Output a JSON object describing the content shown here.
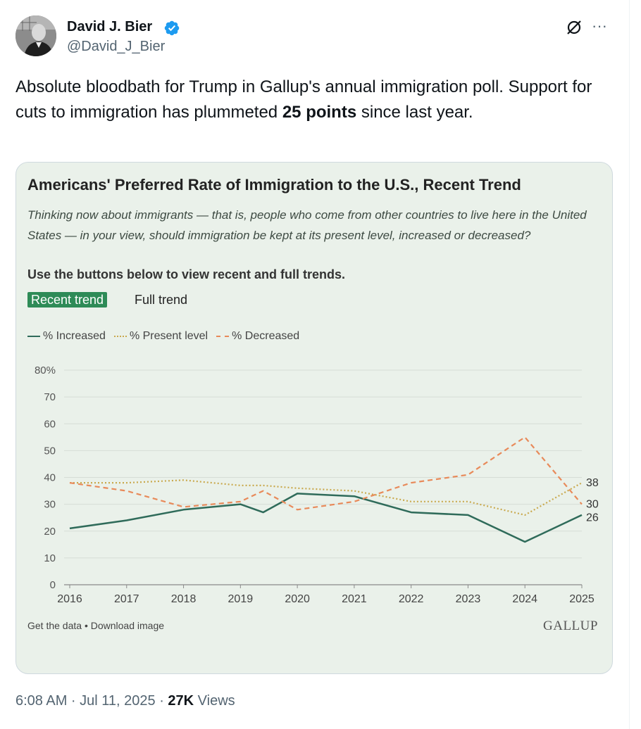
{
  "author": {
    "name": "David J. Bier",
    "handle": "@David_J_Bier",
    "verified": true
  },
  "tweet": {
    "text_part1": "Absolute bloodbath for Trump in Gallup's annual immigration poll. Support for cuts to immigration has plummeted ",
    "text_bold": "25 points",
    "text_part2": " since last year."
  },
  "card": {
    "title": "Americans' Preferred Rate of Immigration to the U.S., Recent Trend",
    "subtitle": "Thinking now about immigrants — that is, people who come from other countries to live here in the United States — in your view, should immigration be kept at its present level, increased or decreased?",
    "instructions": "Use the buttons below to view recent and full trends.",
    "btn_recent": "Recent trend",
    "btn_full": "Full trend",
    "footer_links": "Get the data • Download image",
    "brand": "GALLUP"
  },
  "chart_data": {
    "type": "line",
    "ylim": [
      0,
      80
    ],
    "yticks": [
      "0",
      "10",
      "20",
      "30",
      "40",
      "50",
      "60",
      "70",
      "80%"
    ],
    "xticks": [
      "2016",
      "2017",
      "2018",
      "2019",
      "2020",
      "2021",
      "2022",
      "2023",
      "2024",
      "2025"
    ],
    "legend_position": "top-left",
    "series": [
      {
        "name": "% Increased",
        "color": "#2f6b5a",
        "style": "solid",
        "x": [
          2016,
          2017,
          2018,
          2019,
          2019.4,
          2020,
          2021,
          2022,
          2023,
          2024,
          2025
        ],
        "y": [
          21,
          24,
          28,
          30,
          27,
          34,
          33,
          27,
          26,
          16,
          26
        ],
        "end_label": "26"
      },
      {
        "name": "% Present level",
        "color": "#c9a94e",
        "style": "dotted",
        "x": [
          2016,
          2017,
          2018,
          2019,
          2019.4,
          2020,
          2021,
          2022,
          2023,
          2024,
          2025
        ],
        "y": [
          38,
          38,
          39,
          37,
          37,
          36,
          35,
          31,
          31,
          26,
          38
        ],
        "end_label": "38"
      },
      {
        "name": "% Decreased",
        "color": "#e88a5a",
        "style": "dashed",
        "x": [
          2016,
          2017,
          2018,
          2019,
          2019.4,
          2020,
          2021,
          2022,
          2023,
          2024,
          2025
        ],
        "y": [
          38,
          35,
          29,
          31,
          35,
          28,
          31,
          38,
          41,
          55,
          30
        ],
        "end_label": "30"
      }
    ]
  },
  "meta": {
    "time": "6:08 AM · Jul 11, 2025 · ",
    "views_count": "27K",
    "views_label": " Views"
  },
  "icons": {
    "grok": "grok-icon",
    "more": "more-icon",
    "verified": "verified-badge-icon"
  },
  "colors": {
    "verified": "#1d9bf0",
    "card_bg": "#eaf1ea",
    "accent_green": "#2e8b57"
  }
}
